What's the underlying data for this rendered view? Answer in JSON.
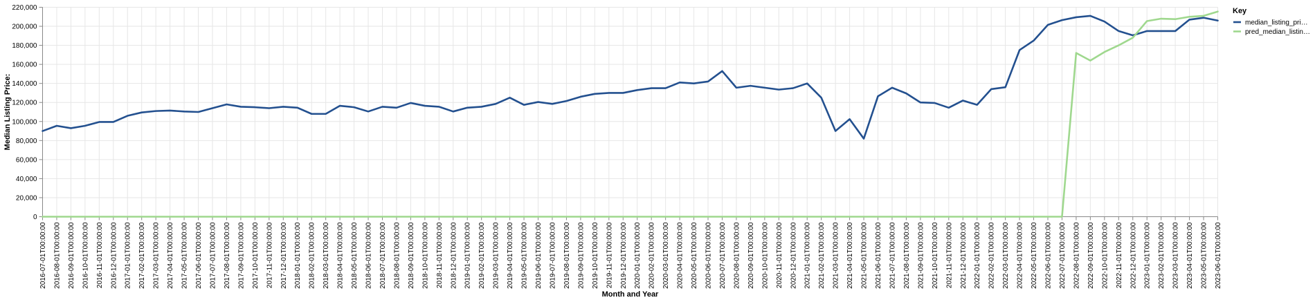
{
  "chart_data": {
    "type": "line",
    "xlabel": "Month and Year",
    "ylabel": "Median Listing Price:",
    "ylim": [
      0,
      220000
    ],
    "yticks": [
      0,
      20000,
      40000,
      60000,
      80000,
      100000,
      120000,
      140000,
      160000,
      180000,
      200000,
      220000
    ],
    "ytick_labels": [
      "0",
      "20,000",
      "40,000",
      "60,000",
      "80,000",
      "100,000",
      "120,000",
      "140,000",
      "160,000",
      "180,000",
      "200,000",
      "220,000"
    ],
    "grid": true,
    "legend": {
      "title": "Key",
      "placement": "right"
    },
    "categories": [
      "2016-07-01T00:00:00",
      "2016-08-01T00:00:00",
      "2016-09-01T00:00:00",
      "2016-10-01T00:00:00",
      "2016-11-01T00:00:00",
      "2016-12-01T00:00:00",
      "2017-01-01T00:00:00",
      "2017-02-01T00:00:00",
      "2017-03-01T00:00:00",
      "2017-04-01T00:00:00",
      "2017-05-01T00:00:00",
      "2017-06-01T00:00:00",
      "2017-07-01T00:00:00",
      "2017-08-01T00:00:00",
      "2017-09-01T00:00:00",
      "2017-10-01T00:00:00",
      "2017-11-01T00:00:00",
      "2017-12-01T00:00:00",
      "2018-01-01T00:00:00",
      "2018-02-01T00:00:00",
      "2018-03-01T00:00:00",
      "2018-04-01T00:00:00",
      "2018-05-01T00:00:00",
      "2018-06-01T00:00:00",
      "2018-07-01T00:00:00",
      "2018-08-01T00:00:00",
      "2018-09-01T00:00:00",
      "2018-10-01T00:00:00",
      "2018-11-01T00:00:00",
      "2018-12-01T00:00:00",
      "2019-01-01T00:00:00",
      "2019-02-01T00:00:00",
      "2019-03-01T00:00:00",
      "2019-04-01T00:00:00",
      "2019-05-01T00:00:00",
      "2019-06-01T00:00:00",
      "2019-07-01T00:00:00",
      "2019-08-01T00:00:00",
      "2019-09-01T00:00:00",
      "2019-10-01T00:00:00",
      "2019-11-01T00:00:00",
      "2019-12-01T00:00:00",
      "2020-01-01T00:00:00",
      "2020-02-01T00:00:00",
      "2020-03-01T00:00:00",
      "2020-04-01T00:00:00",
      "2020-05-01T00:00:00",
      "2020-06-01T00:00:00",
      "2020-07-01T00:00:00",
      "2020-08-01T00:00:00",
      "2020-09-01T00:00:00",
      "2020-10-01T00:00:00",
      "2020-11-01T00:00:00",
      "2020-12-01T00:00:00",
      "2021-01-01T00:00:00",
      "2021-02-01T00:00:00",
      "2021-03-01T00:00:00",
      "2021-04-01T00:00:00",
      "2021-05-01T00:00:00",
      "2021-06-01T00:00:00",
      "2021-07-01T00:00:00",
      "2021-08-01T00:00:00",
      "2021-09-01T00:00:00",
      "2021-10-01T00:00:00",
      "2021-11-01T00:00:00",
      "2021-12-01T00:00:00",
      "2022-01-01T00:00:00",
      "2022-02-01T00:00:00",
      "2022-03-01T00:00:00",
      "2022-04-01T00:00:00",
      "2022-05-01T00:00:00",
      "2022-06-01T00:00:00",
      "2022-07-01T00:00:00",
      "2022-08-01T00:00:00",
      "2022-09-01T00:00:00",
      "2022-10-01T00:00:00",
      "2022-11-01T00:00:00",
      "2022-12-01T00:00:00",
      "2023-01-01T00:00:00",
      "2023-02-01T00:00:00",
      "2023-03-01T00:00:00",
      "2023-04-01T00:00:00",
      "2023-05-01T00:00:00",
      "2023-06-01T00:00:00"
    ],
    "series": [
      {
        "name": "median_listing_pri…",
        "color": "#23508f",
        "values": [
          90000,
          95500,
          93000,
          95500,
          99500,
          99500,
          106000,
          109500,
          111000,
          111500,
          110500,
          110000,
          114000,
          118000,
          115500,
          115000,
          114000,
          115500,
          114500,
          108000,
          108000,
          116500,
          115000,
          110500,
          115500,
          114500,
          119500,
          116500,
          115500,
          110500,
          114500,
          115500,
          118500,
          125000,
          117500,
          120500,
          118500,
          121500,
          126000,
          129000,
          130000,
          130000,
          133000,
          135000,
          135000,
          141000,
          140000,
          142000,
          153000,
          135500,
          137500,
          135500,
          133500,
          135000,
          140000,
          125000,
          90000,
          102500,
          82000,
          126500,
          135500,
          129500,
          120000,
          119500,
          114500,
          122000,
          117500,
          134000,
          136000,
          175000,
          185000,
          201500,
          206500,
          209500,
          211000,
          205000,
          195000,
          190500,
          195000,
          195000,
          195000,
          207000,
          209000,
          206000
        ]
      },
      {
        "name": "pred_median_listin…",
        "color": "#9fd88e",
        "values": [
          0,
          0,
          0,
          0,
          0,
          0,
          0,
          0,
          0,
          0,
          0,
          0,
          0,
          0,
          0,
          0,
          0,
          0,
          0,
          0,
          0,
          0,
          0,
          0,
          0,
          0,
          0,
          0,
          0,
          0,
          0,
          0,
          0,
          0,
          0,
          0,
          0,
          0,
          0,
          0,
          0,
          0,
          0,
          0,
          0,
          0,
          0,
          0,
          0,
          0,
          0,
          0,
          0,
          0,
          0,
          0,
          0,
          0,
          0,
          0,
          0,
          0,
          0,
          0,
          0,
          0,
          0,
          0,
          0,
          0,
          0,
          0,
          0,
          172000,
          164000,
          173000,
          180000,
          188000,
          205500,
          208000,
          207500,
          210000,
          211000,
          215500
        ]
      }
    ]
  }
}
